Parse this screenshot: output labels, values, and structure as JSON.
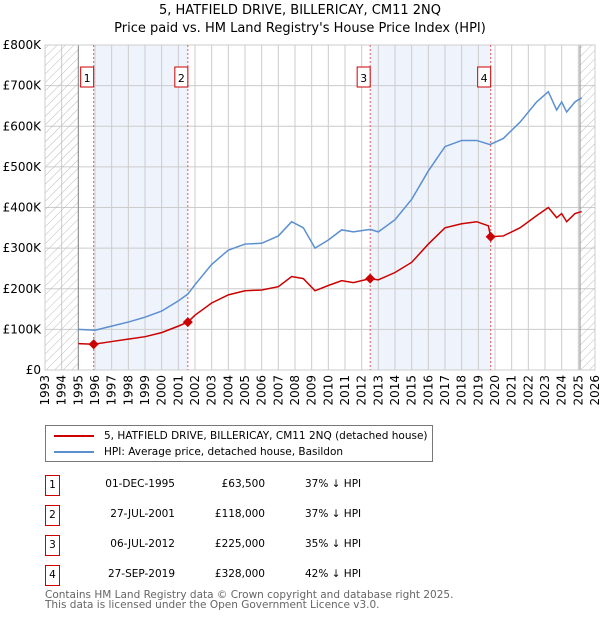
{
  "title": "5, HATFIELD DRIVE, BILLERICAY, CM11 2NQ",
  "subtitle": "Price paid vs. HM Land Registry's House Price Index (HPI)",
  "colors": {
    "property": "#cc0000",
    "hpi": "#5b8fd0",
    "shade": "#eef3fc"
  },
  "chart_data": {
    "type": "line",
    "xlim": [
      1993,
      2026
    ],
    "ylim": [
      0,
      800000
    ],
    "x_ticks": [
      "1993",
      "1994",
      "1995",
      "1996",
      "1997",
      "1998",
      "1999",
      "2000",
      "2001",
      "2002",
      "2003",
      "2004",
      "2005",
      "2006",
      "2007",
      "2008",
      "2009",
      "2010",
      "2011",
      "2012",
      "2013",
      "2014",
      "2015",
      "2016",
      "2017",
      "2018",
      "2019",
      "2020",
      "2021",
      "2022",
      "2023",
      "2024",
      "2025",
      "2026"
    ],
    "y_ticks": [
      {
        "v": 0,
        "label": "£0"
      },
      {
        "v": 100000,
        "label": "£100K"
      },
      {
        "v": 200000,
        "label": "£200K"
      },
      {
        "v": 300000,
        "label": "£300K"
      },
      {
        "v": 400000,
        "label": "£400K"
      },
      {
        "v": 500000,
        "label": "£500K"
      },
      {
        "v": 600000,
        "label": "£600K"
      },
      {
        "v": 700000,
        "label": "£700K"
      },
      {
        "v": 800000,
        "label": "£800K"
      }
    ],
    "hatched_ranges": [
      [
        1993,
        1995
      ],
      [
        2025.1,
        2026
      ]
    ],
    "shaded_ranges": [
      [
        1995.92,
        2001.57
      ],
      [
        2012.51,
        2019.74
      ]
    ],
    "series": [
      {
        "name": "5, HATFIELD DRIVE, BILLERICAY, CM11 2NQ (detached house)",
        "color": "#cc0000",
        "points": [
          [
            1995,
            65000
          ],
          [
            1995.92,
            63500
          ],
          [
            1997,
            70000
          ],
          [
            1998,
            76000
          ],
          [
            1999,
            82000
          ],
          [
            2000,
            92000
          ],
          [
            2001,
            108000
          ],
          [
            2001.57,
            118000
          ],
          [
            2002,
            135000
          ],
          [
            2003,
            165000
          ],
          [
            2004,
            185000
          ],
          [
            2005,
            195000
          ],
          [
            2006,
            197000
          ],
          [
            2007,
            205000
          ],
          [
            2007.8,
            230000
          ],
          [
            2008.5,
            225000
          ],
          [
            2009.2,
            195000
          ],
          [
            2010,
            208000
          ],
          [
            2010.8,
            220000
          ],
          [
            2011.5,
            215000
          ],
          [
            2012.51,
            225000
          ],
          [
            2013,
            222000
          ],
          [
            2014,
            240000
          ],
          [
            2015,
            265000
          ],
          [
            2016,
            310000
          ],
          [
            2017,
            350000
          ],
          [
            2018,
            360000
          ],
          [
            2018.9,
            365000
          ],
          [
            2019.6,
            355000
          ],
          [
            2019.74,
            328000
          ],
          [
            2020.5,
            330000
          ],
          [
            2021.5,
            350000
          ],
          [
            2022.5,
            380000
          ],
          [
            2023.2,
            400000
          ],
          [
            2023.7,
            375000
          ],
          [
            2024,
            385000
          ],
          [
            2024.3,
            365000
          ],
          [
            2024.8,
            385000
          ],
          [
            2025.2,
            390000
          ]
        ]
      },
      {
        "name": "HPI: Average price, detached house, Basildon",
        "color": "#5b8fd0",
        "points": [
          [
            1995,
            100000
          ],
          [
            1996,
            98000
          ],
          [
            1997,
            108000
          ],
          [
            1998,
            118000
          ],
          [
            1999,
            130000
          ],
          [
            2000,
            145000
          ],
          [
            2001,
            170000
          ],
          [
            2001.57,
            187000
          ],
          [
            2002,
            210000
          ],
          [
            2003,
            260000
          ],
          [
            2004,
            295000
          ],
          [
            2005,
            310000
          ],
          [
            2006,
            312000
          ],
          [
            2007,
            330000
          ],
          [
            2007.8,
            365000
          ],
          [
            2008.5,
            350000
          ],
          [
            2009.2,
            300000
          ],
          [
            2010,
            320000
          ],
          [
            2010.8,
            345000
          ],
          [
            2011.5,
            340000
          ],
          [
            2012.51,
            346000
          ],
          [
            2013,
            340000
          ],
          [
            2014,
            370000
          ],
          [
            2015,
            420000
          ],
          [
            2016,
            490000
          ],
          [
            2017,
            550000
          ],
          [
            2018,
            565000
          ],
          [
            2018.9,
            565000
          ],
          [
            2019.7,
            555000
          ],
          [
            2020.5,
            570000
          ],
          [
            2021.5,
            610000
          ],
          [
            2022.5,
            660000
          ],
          [
            2023.2,
            685000
          ],
          [
            2023.7,
            640000
          ],
          [
            2024,
            660000
          ],
          [
            2024.3,
            635000
          ],
          [
            2024.8,
            660000
          ],
          [
            2025.2,
            670000
          ]
        ]
      }
    ],
    "sales": [
      {
        "label": "1",
        "x": 1995.92,
        "y": 63500
      },
      {
        "label": "2",
        "x": 2001.57,
        "y": 118000
      },
      {
        "label": "3",
        "x": 2012.51,
        "y": 225000
      },
      {
        "label": "4",
        "x": 2019.74,
        "y": 328000
      }
    ]
  },
  "legend": {
    "property": "5, HATFIELD DRIVE, BILLERICAY, CM11 2NQ (detached house)",
    "hpi": "HPI: Average price, detached house, Basildon"
  },
  "transactions": [
    {
      "num": "1",
      "date": "01-DEC-1995",
      "price": "£63,500",
      "hpi": "37% ↓ HPI"
    },
    {
      "num": "2",
      "date": "27-JUL-2001",
      "price": "£118,000",
      "hpi": "37% ↓ HPI"
    },
    {
      "num": "3",
      "date": "06-JUL-2012",
      "price": "£225,000",
      "hpi": "35% ↓ HPI"
    },
    {
      "num": "4",
      "date": "27-SEP-2019",
      "price": "£328,000",
      "hpi": "42% ↓ HPI"
    }
  ],
  "footer": {
    "line1": "Contains HM Land Registry data © Crown copyright and database right 2025.",
    "line2": "This data is licensed under the Open Government Licence v3.0."
  }
}
